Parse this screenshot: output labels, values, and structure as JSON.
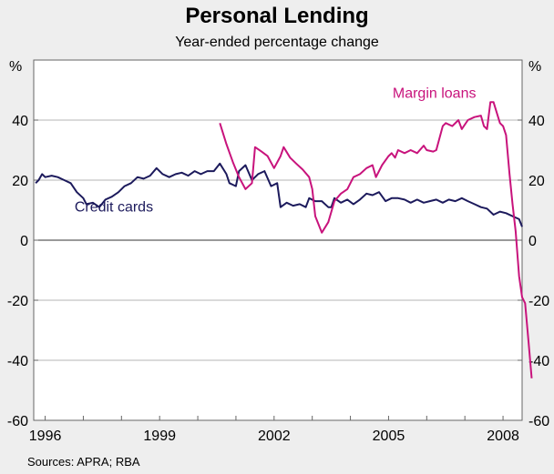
{
  "chart_data": {
    "type": "line",
    "title": "Personal Lending",
    "subtitle": "Year-ended percentage change",
    "y_unit_left": "%",
    "y_unit_right": "%",
    "ylim": [
      -60,
      60
    ],
    "yticks": [
      -60,
      -40,
      -20,
      0,
      20,
      40
    ],
    "ytick_labels": [
      "-60",
      "-40",
      "-20",
      "0",
      "20",
      "40"
    ],
    "xlim": [
      1995.7,
      2008.5
    ],
    "xticks": [
      1996,
      1999,
      2002,
      2005,
      2008
    ],
    "xtick_labels": [
      "1996",
      "1999",
      "2002",
      "2005",
      "2008"
    ],
    "grid": true,
    "series": [
      {
        "name": "Credit cards",
        "color": "#1c1a5c",
        "points": [
          [
            1995.75,
            19
          ],
          [
            1995.83,
            20
          ],
          [
            1995.92,
            22
          ],
          [
            1996.0,
            21
          ],
          [
            1996.17,
            21.5
          ],
          [
            1996.33,
            21
          ],
          [
            1996.5,
            20
          ],
          [
            1996.67,
            19
          ],
          [
            1996.83,
            16
          ],
          [
            1997.0,
            14
          ],
          [
            1997.08,
            12
          ],
          [
            1997.25,
            12.5
          ],
          [
            1997.42,
            11
          ],
          [
            1997.58,
            13.5
          ],
          [
            1997.75,
            14.5
          ],
          [
            1997.92,
            16
          ],
          [
            1998.08,
            18
          ],
          [
            1998.25,
            19
          ],
          [
            1998.42,
            21
          ],
          [
            1998.58,
            20.5
          ],
          [
            1998.75,
            21.5
          ],
          [
            1998.92,
            24
          ],
          [
            1999.08,
            22
          ],
          [
            1999.25,
            21
          ],
          [
            1999.42,
            22
          ],
          [
            1999.58,
            22.5
          ],
          [
            1999.75,
            21.5
          ],
          [
            1999.92,
            23
          ],
          [
            2000.08,
            22
          ],
          [
            2000.25,
            23
          ],
          [
            2000.42,
            23
          ],
          [
            2000.58,
            25.5
          ],
          [
            2000.75,
            22
          ],
          [
            2000.83,
            19
          ],
          [
            2001.0,
            18
          ],
          [
            2001.08,
            23
          ],
          [
            2001.25,
            25
          ],
          [
            2001.42,
            20
          ],
          [
            2001.58,
            22
          ],
          [
            2001.75,
            23
          ],
          [
            2001.92,
            18
          ],
          [
            2002.08,
            19
          ],
          [
            2002.17,
            11
          ],
          [
            2002.33,
            12.5
          ],
          [
            2002.5,
            11.5
          ],
          [
            2002.67,
            12
          ],
          [
            2002.83,
            11
          ],
          [
            2002.92,
            14
          ],
          [
            2003.08,
            13
          ],
          [
            2003.25,
            13
          ],
          [
            2003.42,
            11
          ],
          [
            2003.5,
            11
          ],
          [
            2003.58,
            14
          ],
          [
            2003.75,
            12.5
          ],
          [
            2003.92,
            13.5
          ],
          [
            2004.08,
            12
          ],
          [
            2004.25,
            13.5
          ],
          [
            2004.42,
            15.5
          ],
          [
            2004.58,
            15
          ],
          [
            2004.75,
            16
          ],
          [
            2004.92,
            13
          ],
          [
            2005.08,
            14
          ],
          [
            2005.25,
            14
          ],
          [
            2005.42,
            13.5
          ],
          [
            2005.58,
            12.5
          ],
          [
            2005.75,
            13.5
          ],
          [
            2005.92,
            12.5
          ],
          [
            2006.08,
            13
          ],
          [
            2006.25,
            13.5
          ],
          [
            2006.42,
            12.5
          ],
          [
            2006.58,
            13.5
          ],
          [
            2006.75,
            13
          ],
          [
            2006.92,
            14
          ],
          [
            2007.08,
            13
          ],
          [
            2007.25,
            12
          ],
          [
            2007.42,
            11
          ],
          [
            2007.58,
            10.5
          ],
          [
            2007.75,
            8.5
          ],
          [
            2007.92,
            9.5
          ],
          [
            2008.08,
            9
          ],
          [
            2008.25,
            8
          ],
          [
            2008.42,
            7
          ],
          [
            2008.5,
            4.5
          ]
        ]
      },
      {
        "name": "Margin loans",
        "color": "#c8137c",
        "points": [
          [
            2000.58,
            39
          ],
          [
            2000.75,
            32
          ],
          [
            2000.92,
            26
          ],
          [
            2001.08,
            21
          ],
          [
            2001.25,
            17
          ],
          [
            2001.42,
            19
          ],
          [
            2001.5,
            31
          ],
          [
            2001.67,
            29.5
          ],
          [
            2001.83,
            28
          ],
          [
            2002.0,
            24
          ],
          [
            2002.17,
            28
          ],
          [
            2002.25,
            31
          ],
          [
            2002.42,
            27.5
          ],
          [
            2002.58,
            25.5
          ],
          [
            2002.75,
            23.5
          ],
          [
            2002.92,
            21
          ],
          [
            2003.0,
            17
          ],
          [
            2003.08,
            8
          ],
          [
            2003.25,
            2.5
          ],
          [
            2003.42,
            6
          ],
          [
            2003.58,
            13
          ],
          [
            2003.75,
            15.5
          ],
          [
            2003.92,
            17
          ],
          [
            2004.08,
            21
          ],
          [
            2004.25,
            22
          ],
          [
            2004.42,
            24
          ],
          [
            2004.58,
            25
          ],
          [
            2004.67,
            21
          ],
          [
            2004.83,
            25
          ],
          [
            2005.0,
            28
          ],
          [
            2005.08,
            29
          ],
          [
            2005.17,
            27.5
          ],
          [
            2005.25,
            30
          ],
          [
            2005.42,
            29
          ],
          [
            2005.58,
            30
          ],
          [
            2005.75,
            29
          ],
          [
            2005.92,
            31.5
          ],
          [
            2006.0,
            30
          ],
          [
            2006.17,
            29.5
          ],
          [
            2006.25,
            30
          ],
          [
            2006.42,
            38
          ],
          [
            2006.5,
            39
          ],
          [
            2006.67,
            38
          ],
          [
            2006.83,
            40
          ],
          [
            2006.92,
            37
          ],
          [
            2007.08,
            40
          ],
          [
            2007.25,
            41
          ],
          [
            2007.42,
            41.5
          ],
          [
            2007.5,
            38
          ],
          [
            2007.58,
            37
          ],
          [
            2007.67,
            46
          ],
          [
            2007.75,
            46
          ],
          [
            2007.92,
            39
          ],
          [
            2008.0,
            38
          ],
          [
            2008.08,
            35
          ],
          [
            2008.17,
            22
          ],
          [
            2008.25,
            12
          ],
          [
            2008.33,
            3
          ],
          [
            2008.42,
            -12
          ],
          [
            2008.5,
            -19
          ],
          [
            2008.58,
            -21
          ],
          [
            2008.67,
            -34
          ],
          [
            2008.75,
            -46
          ]
        ]
      }
    ],
    "series_labels": [
      {
        "series": 0,
        "text": "Credit cards",
        "at": [
          1997.8,
          9.5
        ]
      },
      {
        "series": 1,
        "text": "Margin loans",
        "at": [
          2006.2,
          47.5
        ]
      }
    ],
    "source_note": "Sources: APRA; RBA"
  }
}
